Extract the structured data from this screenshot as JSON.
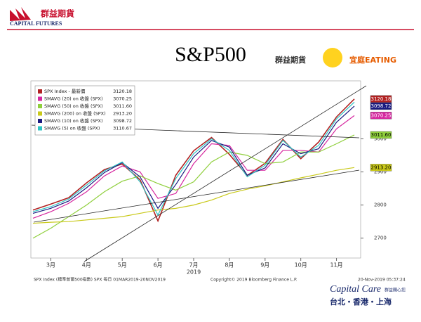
{
  "header": {
    "logo_name": "群益期貨",
    "logo_sub": "CAPITAL FUTURES",
    "brand_left": "群益期貨",
    "brand_right": "宜庭EATING"
  },
  "footer": {
    "source": "SPX Index (標準普爾500指數) SPX  每日 01MAR2019-20NOV2019",
    "copyright": "Copyright© 2019 Bloomberg Finance L.P.",
    "timestamp": "20-Nov-2019 05:37:24",
    "care": "Capital Care",
    "care_sub": "群益關心您",
    "cities": "台北・香港・上海"
  },
  "chart_data": {
    "type": "line",
    "title": "S&P500",
    "x_year_label": "2019",
    "categories": [
      null,
      "3月",
      null,
      "4月",
      null,
      "5月",
      null,
      "6月",
      null,
      "7月",
      null,
      "8月",
      null,
      "9月",
      null,
      "10月",
      null,
      "11月",
      null
    ],
    "ylim": [
      2640,
      3175
    ],
    "yticks": [
      2700,
      2800,
      2900,
      3000
    ],
    "legend": "upper left",
    "series": [
      {
        "name": "SPX Index - 最新價",
        "color": "#b22222",
        "last_value_label": "3120.18",
        "tag": true,
        "values": [
          2785,
          2803,
          2822,
          2867,
          2907,
          2924,
          2876,
          2752,
          2890,
          2964,
          3004,
          2953,
          2889,
          2926,
          2998,
          2940,
          2990,
          3066,
          3120.18
        ]
      },
      {
        "name": "SMAVG (20) on 收盤 (SPX)",
        "color": "#d6279f",
        "last_value_label": "3070.25",
        "tag": true,
        "values": [
          2760,
          2780,
          2805,
          2840,
          2888,
          2918,
          2900,
          2820,
          2835,
          2925,
          2985,
          2980,
          2905,
          2905,
          2965,
          2965,
          2960,
          3030,
          3070.25
        ]
      },
      {
        "name": "SMAVG (50) on 收盤 (SPX)",
        "color": "#8fcf3c",
        "last_value_label": "3011.60",
        "tag": true,
        "values": [
          2700,
          2730,
          2765,
          2800,
          2840,
          2872,
          2888,
          2865,
          2845,
          2870,
          2930,
          2960,
          2950,
          2925,
          2930,
          2960,
          2960,
          2985,
          3011.6
        ]
      },
      {
        "name": "SMAVG (200) on 收盤 (SPX)",
        "color": "#c9c91a",
        "last_value_label": "2913.20",
        "tag": true,
        "values": [
          2745,
          2748,
          2750,
          2755,
          2760,
          2765,
          2775,
          2785,
          2790,
          2800,
          2815,
          2835,
          2848,
          2858,
          2870,
          2882,
          2893,
          2905,
          2913.2
        ]
      },
      {
        "name": "SMAVG (10) on 收盤 (SPX)",
        "color": "#1a1a80",
        "last_value_label": "3098.72",
        "tag": true,
        "values": [
          2775,
          2790,
          2812,
          2852,
          2898,
          2928,
          2885,
          2790,
          2862,
          2945,
          2995,
          2975,
          2890,
          2912,
          2985,
          2955,
          2970,
          3050,
          3098.72
        ]
      },
      {
        "name": "SMAVG (5) on 收盤 (SPX)",
        "color": "#2ec4c4",
        "last_value_label": "3110.67",
        "tag": false,
        "values": [
          2780,
          2795,
          2818,
          2860,
          2903,
          2930,
          2870,
          2770,
          2880,
          2955,
          3000,
          2965,
          2885,
          2920,
          2995,
          2945,
          2980,
          3060,
          3110.67
        ]
      }
    ]
  }
}
